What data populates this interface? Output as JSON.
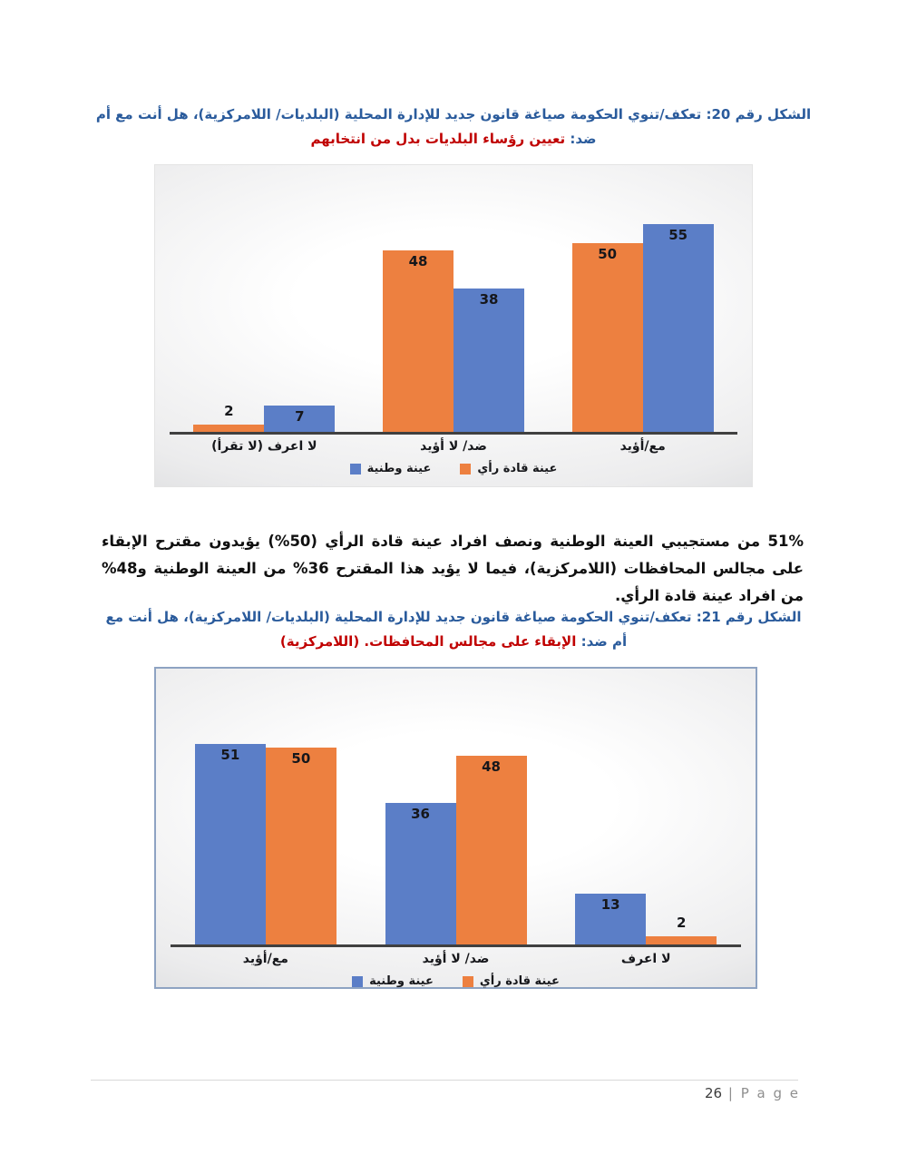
{
  "colors": {
    "title_blue": "#2A5B9C",
    "highlight_red": "#C00000",
    "series_blue": "#5B7EC7",
    "series_orange": "#ED8040"
  },
  "chart_data": [
    {
      "type": "bar",
      "figure_title": "الشكل رقم  20: تعكف/تنوي الحكومة صياغة قانون جديد للإدارة المحلية (البلديات/ اللامركزية)، هل أنت مع أم ضد: ",
      "figure_title_highlight": "تعيين رؤساء البلديات بدل من انتخابهم",
      "categories": [
        "لا اعرف (لا تقرأ)",
        "ضد/ لا أؤيد",
        "مع/أؤيد"
      ],
      "series": [
        {
          "name": "عينة قادة رأي",
          "color": "#ED8040",
          "values": [
            2,
            48,
            50
          ]
        },
        {
          "name": "عينة وطنية",
          "color": "#5B7EC7",
          "values": [
            7,
            38,
            55
          ]
        }
      ],
      "ylim": [
        0,
        60
      ],
      "grid": false,
      "legend_position": "bottom",
      "legend": [
        {
          "label": "عينة وطنية",
          "color": "#5B7EC7"
        },
        {
          "label": "عينة قادة رأي",
          "color": "#ED8040"
        }
      ]
    },
    {
      "type": "bar",
      "figure_title": "الشكل رقم  21: تعكف/تنوي الحكومة صياغة قانون جديد للإدارة المحلية (البلديات/ اللامركزية)، هل أنت مع أم ضد: ",
      "figure_title_highlight": "الإبقاء على مجالس المحافظات. (اللامركزية)",
      "categories": [
        "مع/أؤيد",
        "ضد/ لا أؤيد",
        "لا اعرف"
      ],
      "series": [
        {
          "name": "عينة وطنية",
          "color": "#5B7EC7",
          "values": [
            51,
            36,
            13
          ]
        },
        {
          "name": "عينة قادة رأي",
          "color": "#ED8040",
          "values": [
            50,
            48,
            2
          ]
        }
      ],
      "ylim": [
        0,
        60
      ],
      "grid": false,
      "legend_position": "bottom",
      "legend": [
        {
          "label": "عينة وطنية",
          "color": "#5B7EC7"
        },
        {
          "label": "عينة قادة رأي",
          "color": "#ED8040"
        }
      ]
    }
  ],
  "paragraph": "51% من مستجيبي العينة الوطنية ونصف افراد عينة قادة الرأي (50%) يؤيدون مقترح الإبقاء على مجالس المحافظات (اللامركزية)، فيما لا يؤيد هذا المقترح 36% من العينة الوطنية و48% من افراد عينة قادة الرأي.",
  "footer": {
    "page_number": "26",
    "page_label": "| P a g e"
  }
}
